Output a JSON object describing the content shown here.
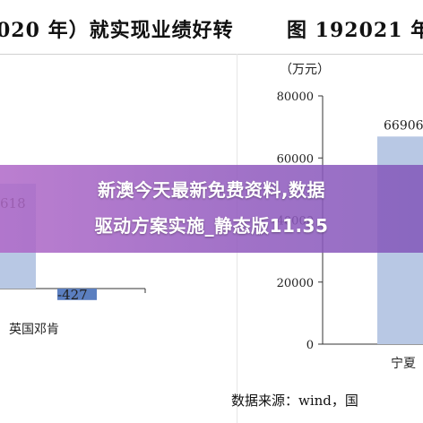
{
  "header": {
    "left_title": "020 年）就实现业绩好转",
    "right_title": "图 192021 年"
  },
  "overlay": {
    "line1": "新澳今天最新免费资料,数据",
    "line2": "驱动方案实施_静态版11.35"
  },
  "source": "数据来源：wind，国",
  "chart_data": [
    {
      "type": "bar",
      "categories": [
        "",
        "英国邓肯"
      ],
      "series": [
        {
          "values": [
            null,
            -427
          ]
        }
      ],
      "annotations": [
        "618",
        "-427"
      ],
      "colors": {
        "positive": "#b8c8e4",
        "negative": "#5b7fc0"
      }
    },
    {
      "type": "bar",
      "ylabel": "（万元）",
      "ylim": [
        0,
        80000
      ],
      "yticks": [
        0,
        20000,
        40000,
        60000,
        80000
      ],
      "categories": [
        "宁夏"
      ],
      "series": [
        {
          "values": [
            66906
          ]
        }
      ],
      "data_labels": [
        "66906"
      ],
      "colors": {
        "bar": "#b8c8e4"
      }
    }
  ]
}
